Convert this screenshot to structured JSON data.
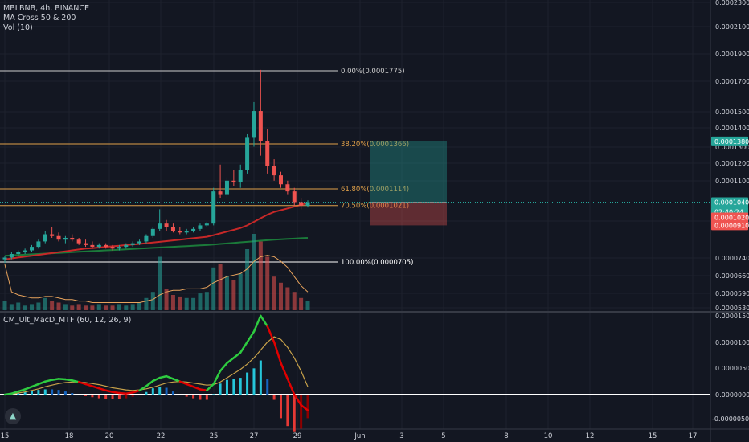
{
  "legend": {
    "symbol": "MBLBNB, 4h, BINANCE",
    "indicator1": "MA Cross 50 & 200",
    "indicator2": "Vol (10)",
    "indicator3": "CM_Ult_MacD_MTF (60, 12, 26, 9)"
  },
  "colors": {
    "background": "#131722",
    "up": "#26a69a",
    "down": "#ef5350",
    "grid": "#1e222d",
    "fib": "#e0a04a",
    "ma50": "#c62828",
    "ma200": "#1b7a3a",
    "macd_up": "#2ecc40",
    "macd_down": "#e00000",
    "signal": "#c8a24a"
  },
  "price_axis": {
    "ticks": [
      "0.0002300",
      "0.0002100",
      "0.0001900",
      "0.0001700",
      "0.0001500",
      "0.0001400",
      "0.0001300",
      "0.0001200",
      "0.0001100",
      "0.0000910",
      "0.0000740",
      "0.0000660",
      "0.0000590",
      "0.0000530"
    ]
  },
  "price_badges": [
    {
      "text": "0.0001380",
      "color": "#26a69a"
    },
    {
      "text": "0.0001040",
      "color": "#26a69a"
    },
    {
      "text": "02:40:24",
      "color": "#26a69a"
    },
    {
      "text": "0.0001020",
      "color": "#ef5350"
    },
    {
      "text": "0.0000910",
      "color": "#ef5350"
    }
  ],
  "macd_axis": {
    "ticks": [
      "0.0000150",
      "0.0000100",
      "0.0000050",
      "0.0000000",
      "-0.0000050"
    ]
  },
  "time_axis": {
    "labels": [
      "15",
      "18",
      "20",
      "22",
      "25",
      "27",
      "29",
      "Jun",
      "3",
      "5",
      "8",
      "10",
      "12",
      "15",
      "17"
    ]
  },
  "fib_levels": [
    {
      "label": "0.00%(0.0001775)"
    },
    {
      "label": "38.20%(0.0001366)"
    },
    {
      "label": "61.80%(0.0001114)"
    },
    {
      "label": "70.50%(0.0001021)"
    },
    {
      "label": "100.00%(0.0000705)"
    }
  ],
  "chart_data": {
    "type": "candlestick",
    "candles": [
      {
        "o": 72,
        "h": 74,
        "l": 70,
        "c": 73
      },
      {
        "o": 73,
        "h": 76,
        "l": 72,
        "c": 75
      },
      {
        "o": 75,
        "h": 77,
        "l": 74,
        "c": 76
      },
      {
        "o": 76,
        "h": 78,
        "l": 75,
        "c": 77
      },
      {
        "o": 77,
        "h": 80,
        "l": 76,
        "c": 79
      },
      {
        "o": 79,
        "h": 83,
        "l": 78,
        "c": 82
      },
      {
        "o": 82,
        "h": 88,
        "l": 81,
        "c": 86
      },
      {
        "o": 86,
        "h": 90,
        "l": 84,
        "c": 85
      },
      {
        "o": 85,
        "h": 87,
        "l": 82,
        "c": 83
      },
      {
        "o": 83,
        "h": 85,
        "l": 81,
        "c": 84
      },
      {
        "o": 84,
        "h": 86,
        "l": 82,
        "c": 83
      },
      {
        "o": 83,
        "h": 84,
        "l": 80,
        "c": 81
      },
      {
        "o": 81,
        "h": 83,
        "l": 79,
        "c": 80
      },
      {
        "o": 80,
        "h": 82,
        "l": 78,
        "c": 79
      },
      {
        "o": 79,
        "h": 81,
        "l": 78,
        "c": 80
      },
      {
        "o": 80,
        "h": 81,
        "l": 78,
        "c": 79
      },
      {
        "o": 79,
        "h": 80,
        "l": 77,
        "c": 78
      },
      {
        "o": 78,
        "h": 80,
        "l": 77,
        "c": 79
      },
      {
        "o": 79,
        "h": 81,
        "l": 78,
        "c": 80
      },
      {
        "o": 80,
        "h": 82,
        "l": 79,
        "c": 81
      },
      {
        "o": 81,
        "h": 83,
        "l": 80,
        "c": 82
      },
      {
        "o": 82,
        "h": 86,
        "l": 81,
        "c": 85
      },
      {
        "o": 85,
        "h": 90,
        "l": 84,
        "c": 89
      },
      {
        "o": 89,
        "h": 100,
        "l": 88,
        "c": 92
      },
      {
        "o": 92,
        "h": 94,
        "l": 88,
        "c": 90
      },
      {
        "o": 90,
        "h": 92,
        "l": 87,
        "c": 88
      },
      {
        "o": 88,
        "h": 90,
        "l": 86,
        "c": 87
      },
      {
        "o": 87,
        "h": 89,
        "l": 86,
        "c": 88
      },
      {
        "o": 88,
        "h": 90,
        "l": 87,
        "c": 89
      },
      {
        "o": 89,
        "h": 92,
        "l": 88,
        "c": 91
      },
      {
        "o": 91,
        "h": 93,
        "l": 90,
        "c": 92
      },
      {
        "o": 92,
        "h": 112,
        "l": 91,
        "c": 110
      },
      {
        "o": 110,
        "h": 125,
        "l": 106,
        "c": 108
      },
      {
        "o": 108,
        "h": 118,
        "l": 106,
        "c": 116
      },
      {
        "o": 116,
        "h": 122,
        "l": 113,
        "c": 115
      },
      {
        "o": 115,
        "h": 125,
        "l": 112,
        "c": 122
      },
      {
        "o": 122,
        "h": 142,
        "l": 120,
        "c": 140
      },
      {
        "o": 140,
        "h": 160,
        "l": 135,
        "c": 155
      },
      {
        "o": 155,
        "h": 178,
        "l": 130,
        "c": 138
      },
      {
        "o": 138,
        "h": 145,
        "l": 120,
        "c": 124
      },
      {
        "o": 124,
        "h": 128,
        "l": 116,
        "c": 119
      },
      {
        "o": 119,
        "h": 121,
        "l": 112,
        "c": 114
      },
      {
        "o": 114,
        "h": 116,
        "l": 108,
        "c": 110
      },
      {
        "o": 110,
        "h": 112,
        "l": 102,
        "c": 104
      },
      {
        "o": 104,
        "h": 106,
        "l": 100,
        "c": 102
      },
      {
        "o": 102,
        "h": 105,
        "l": 101,
        "c": 104
      }
    ],
    "ma50": [
      72,
      72.5,
      73,
      73.5,
      74,
      74.5,
      75,
      75.5,
      76,
      76.5,
      77,
      77.5,
      78,
      78.3,
      78.6,
      79,
      79.3,
      79.6,
      80,
      80.3,
      80.6,
      81,
      81.4,
      81.8,
      82.2,
      82.6,
      83,
      83.4,
      83.8,
      84.2,
      84.6,
      85.5,
      86.5,
      87.5,
      88.5,
      89.5,
      91,
      93,
      95,
      97,
      98.5,
      99.5,
      100.5,
      101.5,
      102.5,
      103.5
    ],
    "ma200": [
      74,
      74.2,
      74.4,
      74.6,
      74.8,
      75,
      75.2,
      75.4,
      75.6,
      75.8,
      76,
      76.2,
      76.4,
      76.6,
      76.8,
      77,
      77.2,
      77.4,
      77.6,
      77.8,
      78,
      78.2,
      78.4,
      78.6,
      78.8,
      79,
      79.2,
      79.4,
      79.6,
      79.8,
      80,
      80.3,
      80.6,
      80.9,
      81.2,
      81.5,
      81.8,
      82.1,
      82.4,
      82.7,
      83,
      83.2,
      83.4,
      83.6,
      83.8,
      84
    ],
    "volume": [
      6,
      4,
      5,
      3,
      4,
      5,
      8,
      6,
      5,
      4,
      3,
      4,
      3,
      3,
      4,
      3,
      3,
      4,
      3,
      4,
      5,
      8,
      12,
      35,
      14,
      10,
      9,
      8,
      8,
      11,
      12,
      28,
      30,
      22,
      20,
      24,
      40,
      50,
      45,
      35,
      22,
      18,
      15,
      12,
      8,
      6
    ],
    "volume_ma": [
      30,
      12,
      10,
      9,
      8,
      8,
      9,
      9,
      8,
      7,
      7,
      6,
      6,
      5,
      5,
      5,
      5,
      5,
      5,
      5,
      5,
      6,
      7,
      10,
      12,
      13,
      13,
      14,
      14,
      14,
      15,
      18,
      20,
      22,
      23,
      24,
      27,
      32,
      35,
      36,
      35,
      32,
      28,
      22,
      16,
      12
    ],
    "macd": [
      0,
      0.2,
      0.6,
      1,
      1.5,
      2,
      2.5,
      2.8,
      3,
      2.9,
      2.7,
      2.4,
      2,
      1.6,
      1.2,
      0.8,
      0.5,
      0.3,
      0.2,
      0.4,
      0.8,
      1.6,
      2.6,
      3.2,
      3.5,
      3,
      2.5,
      2,
      1.5,
      1,
      0.8,
      2,
      4.5,
      6,
      7,
      8,
      10,
      12,
      15,
      13,
      10,
      6,
      3,
      0,
      -2,
      -3
    ],
    "signal": [
      0,
      0.1,
      0.3,
      0.5,
      0.8,
      1.1,
      1.5,
      1.8,
      2.1,
      2.3,
      2.4,
      2.4,
      2.3,
      2.1,
      1.9,
      1.6,
      1.3,
      1.1,
      0.9,
      0.8,
      0.9,
      1.1,
      1.4,
      1.8,
      2.2,
      2.4,
      2.5,
      2.4,
      2.2,
      2,
      1.8,
      1.9,
      2.4,
      3.2,
      4,
      4.8,
      5.8,
      7,
      8.5,
      10,
      11,
      10.5,
      9,
      7,
      4.5,
      1.5
    ],
    "rr_box": {
      "entry": 0.000104,
      "target": 0.000138,
      "stop": 9.1e-05
    },
    "last_price": 0.000104
  }
}
